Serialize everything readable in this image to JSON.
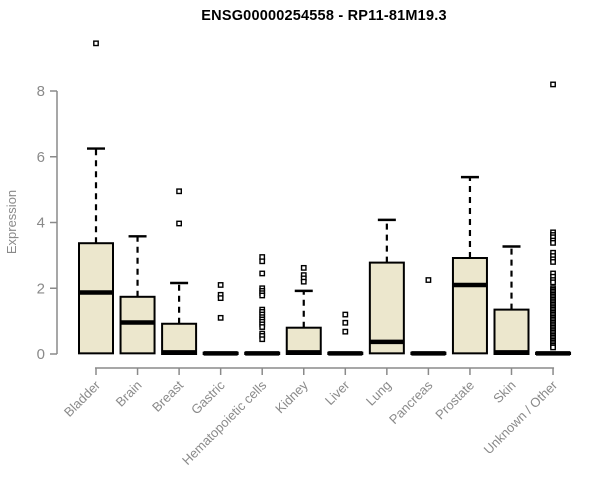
{
  "chart_data": {
    "type": "boxplot",
    "title": "ENSG00000254558 - RP11-81M19.3",
    "ylabel": "Expression",
    "xlabel": "",
    "ylim": [
      0,
      8
    ],
    "y_ticks": [
      0,
      2,
      4,
      6,
      8
    ],
    "grid": false,
    "legend": "none",
    "box_fill": "#ece7cd",
    "box_stroke": "#000000",
    "axis_color": "#8a8a8a",
    "categories": [
      "Bladder",
      "Brain",
      "Breast",
      "Gastric",
      "Hematopoietic cells",
      "Kidney",
      "Liver",
      "Lung",
      "Pancreas",
      "Prostate",
      "Skin",
      "Unknown / Other"
    ],
    "boxes": [
      {
        "category": "Bladder",
        "whisker_low": 0.02,
        "q1": 0.02,
        "median": 1.87,
        "q3": 3.37,
        "whisker_high": 6.25,
        "outliers": [
          9.45
        ]
      },
      {
        "category": "Brain",
        "whisker_low": 0.02,
        "q1": 0.02,
        "median": 0.96,
        "q3": 1.74,
        "whisker_high": 3.58,
        "outliers": []
      },
      {
        "category": "Breast",
        "whisker_low": 0.0,
        "q1": 0.0,
        "median": 0.05,
        "q3": 0.92,
        "whisker_high": 2.16,
        "outliers": [
          4.95,
          3.97
        ]
      },
      {
        "category": "Gastric",
        "whisker_low": 0.0,
        "q1": 0.0,
        "median": 0.02,
        "q3": 0.04,
        "whisker_high": 0.04,
        "outliers": [
          2.1,
          1.8,
          1.7,
          1.1
        ]
      },
      {
        "category": "Hematopoietic cells",
        "whisker_low": 0.0,
        "q1": 0.0,
        "median": 0.02,
        "q3": 0.04,
        "whisker_high": 0.04,
        "outliers": [
          2.95,
          2.82,
          2.45,
          2.0,
          1.92,
          1.85,
          1.78,
          1.35,
          1.28,
          1.2,
          1.12,
          1.05,
          0.98,
          0.9,
          0.82,
          0.62,
          0.55,
          0.45
        ]
      },
      {
        "category": "Kidney",
        "whisker_low": 0.0,
        "q1": 0.0,
        "median": 0.05,
        "q3": 0.8,
        "whisker_high": 1.92,
        "outliers": [
          2.62,
          2.4,
          2.3,
          2.2
        ]
      },
      {
        "category": "Liver",
        "whisker_low": 0.0,
        "q1": 0.0,
        "median": 0.02,
        "q3": 0.04,
        "whisker_high": 0.04,
        "outliers": [
          1.2,
          0.95,
          0.68
        ]
      },
      {
        "category": "Lung",
        "whisker_low": 0.02,
        "q1": 0.02,
        "median": 0.37,
        "q3": 2.78,
        "whisker_high": 4.08,
        "outliers": []
      },
      {
        "category": "Pancreas",
        "whisker_low": 0.0,
        "q1": 0.0,
        "median": 0.02,
        "q3": 0.04,
        "whisker_high": 0.04,
        "outliers": [
          2.25
        ]
      },
      {
        "category": "Prostate",
        "whisker_low": 0.02,
        "q1": 0.02,
        "median": 2.1,
        "q3": 2.92,
        "whisker_high": 5.38,
        "outliers": []
      },
      {
        "category": "Skin",
        "whisker_low": 0.0,
        "q1": 0.0,
        "median": 0.05,
        "q3": 1.35,
        "whisker_high": 3.27,
        "outliers": []
      },
      {
        "category": "Unknown / Other",
        "whisker_low": 0.0,
        "q1": 0.0,
        "median": 0.02,
        "q3": 0.04,
        "whisker_high": 0.04,
        "outliers": [
          8.2,
          3.7,
          3.62,
          3.55,
          3.45,
          3.38,
          3.08,
          2.98,
          2.88,
          2.8,
          2.45,
          2.35,
          2.25,
          2.18,
          2.0,
          1.95,
          1.9,
          1.85,
          1.8,
          1.75,
          1.7,
          1.65,
          1.6,
          1.55,
          1.5,
          1.45,
          1.4,
          1.35,
          1.3,
          1.25,
          1.2,
          1.15,
          1.1,
          1.05,
          1.0,
          0.95,
          0.9,
          0.85,
          0.8,
          0.75,
          0.7,
          0.65,
          0.6,
          0.55,
          0.5,
          0.45,
          0.4,
          0.35,
          0.3,
          0.25,
          0.2
        ]
      }
    ]
  }
}
